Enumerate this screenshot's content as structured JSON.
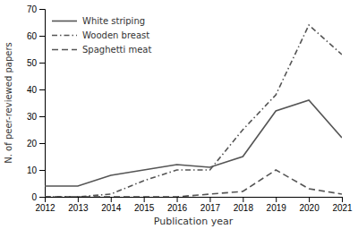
{
  "chart_data": {
    "type": "line",
    "x": [
      2012,
      2013,
      2014,
      2015,
      2016,
      2017,
      2018,
      2019,
      2020,
      2021
    ],
    "series": [
      {
        "name": "White striping",
        "color": "#555555",
        "line_style": "solid",
        "values": [
          4,
          4,
          8,
          10,
          12,
          11,
          15,
          32,
          36,
          22
        ]
      },
      {
        "name": "Wooden breast",
        "color": "#555555",
        "line_style": "dashdot",
        "values": [
          0,
          0,
          1,
          6,
          10,
          10,
          25,
          38,
          64,
          53
        ]
      },
      {
        "name": "Spaghetti meat",
        "color": "#555555",
        "line_style": "dashed",
        "values": [
          0,
          0,
          0,
          0,
          0,
          1,
          2,
          10,
          3,
          1
        ]
      }
    ],
    "xlabel": "Publication year",
    "ylabel": "N. of peer-reviewed papers",
    "xlim": [
      2012,
      2021
    ],
    "xticks": [
      2012,
      2013,
      2014,
      2015,
      2016,
      2017,
      2018,
      2019,
      2020,
      2021
    ],
    "ylim": [
      0,
      70
    ],
    "yticks": [
      0,
      10,
      20,
      30,
      40,
      50,
      60,
      70
    ],
    "legend": "upper left",
    "grid": false
  }
}
